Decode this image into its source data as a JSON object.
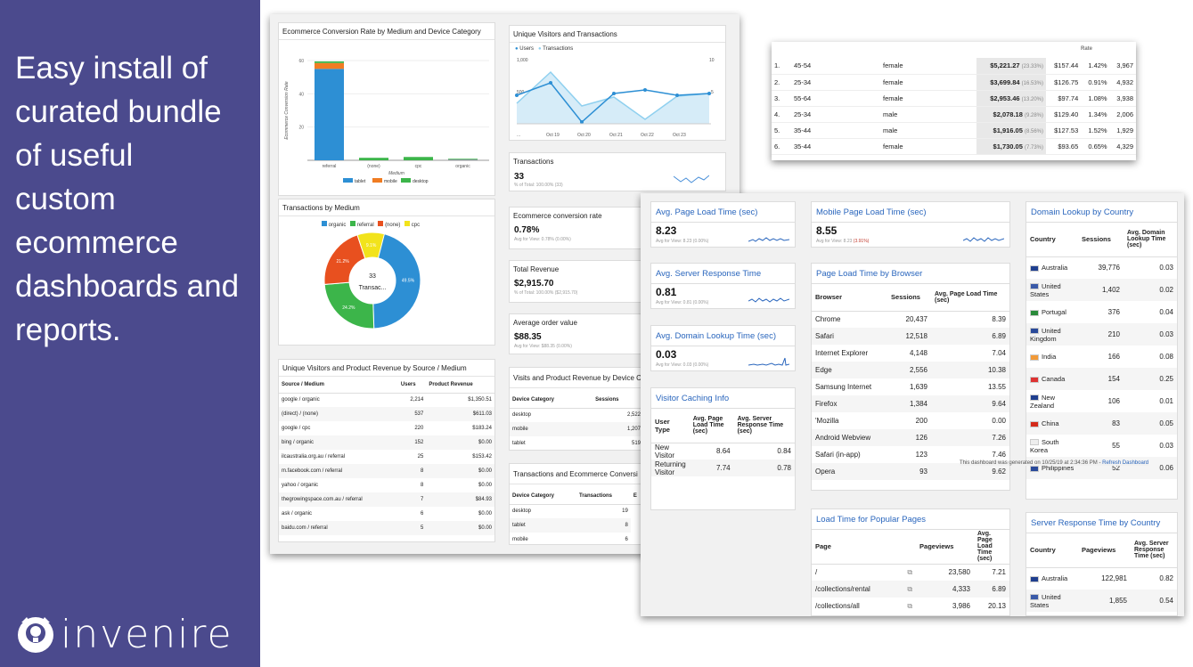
{
  "hero_lines": [
    "Easy install of",
    "curated bundle",
    "of useful",
    "custom",
    "ecommerce",
    "dashboards and",
    "reports."
  ],
  "brand": "invenire",
  "colors": {
    "sidebar": "#4b4a8d",
    "tablet": "#2d8fd4",
    "mobile": "#f07c22",
    "desktop": "#3cb54a",
    "link": "#2a66bd"
  },
  "conv": {
    "title": "Ecommerce Conversion Rate by Medium and Device Category",
    "ylabel": "Ecommerce Conversion Rate",
    "xlabel": "Medium",
    "yticks": [
      "60",
      "40",
      "20"
    ],
    "categories": [
      "referral",
      "(none)",
      "cpc",
      "organic"
    ],
    "legend": [
      "tablet",
      "mobile",
      "desktop"
    ]
  },
  "uv": {
    "title": "Unique Visitors and Transactions",
    "legend": [
      "Users",
      "Transactions"
    ],
    "y_left": [
      "1,000",
      "500"
    ],
    "y_right": [
      "10",
      "5"
    ],
    "xticks": [
      "...",
      "Oct 19",
      "Oct 20",
      "Oct 21",
      "Oct 22",
      "Oct 23"
    ]
  },
  "tx_medium": {
    "title": "Transactions by Medium",
    "legend": [
      "organic",
      "referral",
      "(none)",
      "cpc"
    ],
    "center_value": "33",
    "center_label": "Transac...",
    "labels": [
      "49.5%",
      "24.2%",
      "21.2%",
      "9.1%"
    ]
  },
  "kpis": [
    {
      "title": "Transactions",
      "value": "33",
      "sub": "% of Total: 100.00% (33)"
    },
    {
      "title": "Ecommerce conversion rate",
      "value": "0.78%",
      "sub": "Avg for View: 0.78% (0.00%)"
    },
    {
      "title": "Total Revenue",
      "value": "$2,915.70",
      "sub": "% of Total: 100.00% ($2,915.70)"
    },
    {
      "title": "Average order value",
      "value": "$88.35",
      "sub": "Avg for View: $88.35 (0.00%)"
    }
  ],
  "source": {
    "title": "Unique Visitors and Product Revenue by Source / Medium",
    "headers": [
      "Source / Medium",
      "Users",
      "Product Revenue"
    ],
    "rows": [
      [
        "google / organic",
        "2,214",
        "$1,350.51"
      ],
      [
        "(direct) / (none)",
        "537",
        "$611.03"
      ],
      [
        "google / cpc",
        "220",
        "$183.24"
      ],
      [
        "bing / organic",
        "152",
        "$0.00"
      ],
      [
        "ilcaustralia.org.au / referral",
        "25",
        "$153.42"
      ],
      [
        "m.facebook.com / referral",
        "8",
        "$0.00"
      ],
      [
        "yahoo / organic",
        "8",
        "$0.00"
      ],
      [
        "thegrowingspace.com.au / referral",
        "7",
        "$84.93"
      ],
      [
        "ask / organic",
        "6",
        "$0.00"
      ],
      [
        "baidu.com / referral",
        "5",
        "$0.00"
      ]
    ]
  },
  "visits_device": {
    "title": "Visits and Product Revenue by Device C",
    "headers": [
      "Device Category",
      "Sessions"
    ],
    "rows": [
      [
        "desktop",
        "2,522"
      ],
      [
        "mobile",
        "1,207"
      ],
      [
        "tablet",
        "519"
      ]
    ]
  },
  "tx_device": {
    "title": "Transactions and Ecommerce Conversi",
    "headers": [
      "Device Category",
      "Transactions",
      "E"
    ],
    "rows": [
      [
        "desktop",
        "19"
      ],
      [
        "tablet",
        "8"
      ],
      [
        "mobile",
        "6"
      ]
    ]
  },
  "demo": {
    "header_fragment": "Rate",
    "rows": [
      [
        "1.",
        "45-54",
        "female",
        "$5,221.27",
        "(23.33%)",
        "$157.44",
        "1.42%",
        "3,967"
      ],
      [
        "2.",
        "25-34",
        "female",
        "$3,699.84",
        "(16.53%)",
        "$126.75",
        "0.91%",
        "4,932"
      ],
      [
        "3.",
        "55-64",
        "female",
        "$2,953.46",
        "(13.20%)",
        "$97.74",
        "1.08%",
        "3,938"
      ],
      [
        "4.",
        "25-34",
        "male",
        "$2,078.18",
        "(9.28%)",
        "$129.40",
        "1.34%",
        "2,006"
      ],
      [
        "5.",
        "35-44",
        "male",
        "$1,916.05",
        "(8.56%)",
        "$127.53",
        "1.52%",
        "1,929"
      ],
      [
        "6.",
        "35-44",
        "female",
        "$1,730.05",
        "(7.73%)",
        "$93.65",
        "0.65%",
        "4,329"
      ]
    ]
  },
  "page_load": {
    "title": "Avg. Page Load Time (sec)",
    "value": "8.23",
    "sub": "Avg for View: 8.23 (0.00%)"
  },
  "mobile_load": {
    "title": "Mobile Page Load Time (sec)",
    "value": "8.55",
    "sub_a": "Avg for View: 8.23 ",
    "sub_b": "(3.91%)"
  },
  "server_resp": {
    "title": "Avg. Server Response Time",
    "value": "0.81",
    "sub": "Avg for View: 0.81 (0.00%)"
  },
  "domain_lookup": {
    "title": "Avg. Domain Lookup Time (sec)",
    "value": "0.03",
    "sub": "Avg for View: 0.03 (0.00%)"
  },
  "caching": {
    "title": "Visitor Caching Info",
    "headers": [
      "User Type",
      "Avg. Page Load Time (sec)",
      "Avg. Server Response Time (sec)"
    ],
    "rows": [
      [
        "New Visitor",
        "8.64",
        "0.84"
      ],
      [
        "Returning Visitor",
        "7.74",
        "0.78"
      ]
    ]
  },
  "browser": {
    "title": "Page Load Time by Browser",
    "headers": [
      "Browser",
      "Sessions",
      "Avg. Page Load Time (sec)"
    ],
    "rows": [
      [
        "Chrome",
        "20,437",
        "8.39"
      ],
      [
        "Safari",
        "12,518",
        "6.89"
      ],
      [
        "Internet Explorer",
        "4,148",
        "7.04"
      ],
      [
        "Edge",
        "2,556",
        "10.38"
      ],
      [
        "Samsung Internet",
        "1,639",
        "13.55"
      ],
      [
        "Firefox",
        "1,384",
        "9.64"
      ],
      [
        "'Mozilla",
        "200",
        "0.00"
      ],
      [
        "Android Webview",
        "126",
        "7.26"
      ],
      [
        "Safari (in-app)",
        "123",
        "7.46"
      ],
      [
        "Opera",
        "93",
        "9.62"
      ]
    ]
  },
  "domain_country": {
    "title": "Domain Lookup by Country",
    "headers": [
      "Country",
      "Sessions",
      "Avg. Domain Lookup Time (sec)"
    ],
    "rows": [
      [
        "Australia",
        "39,776",
        "0.03"
      ],
      [
        "United States",
        "1,402",
        "0.02"
      ],
      [
        "Portugal",
        "376",
        "0.04"
      ],
      [
        "United Kingdom",
        "210",
        "0.03"
      ],
      [
        "India",
        "166",
        "0.08"
      ],
      [
        "Canada",
        "154",
        "0.25"
      ],
      [
        "New Zealand",
        "106",
        "0.01"
      ],
      [
        "China",
        "83",
        "0.05"
      ],
      [
        "South Korea",
        "55",
        "0.03"
      ],
      [
        "Philippines",
        "52",
        "0.06"
      ]
    ]
  },
  "generated_note": "This dashboard was generated on 10/25/19 at 2:34:36 PM - ",
  "refresh_label": "Refresh Dashboard",
  "popular": {
    "title": "Load Time for Popular Pages",
    "headers": [
      "Page",
      "Pageviews",
      "Avg. Page Load Time (sec)"
    ],
    "rows": [
      [
        "/",
        "23,580",
        "7.21"
      ],
      [
        "/collections/rental",
        "4,333",
        "6.89"
      ],
      [
        "/collections/all",
        "3,986",
        "20.13"
      ]
    ]
  },
  "server_country": {
    "title": "Server Response Time by Country",
    "headers": [
      "Country",
      "Pageviews",
      "Avg. Server Response Time (sec)"
    ],
    "rows": [
      [
        "Australia",
        "122,981",
        "0.82"
      ],
      [
        "United States",
        "1,855",
        "0.54"
      ]
    ]
  }
}
